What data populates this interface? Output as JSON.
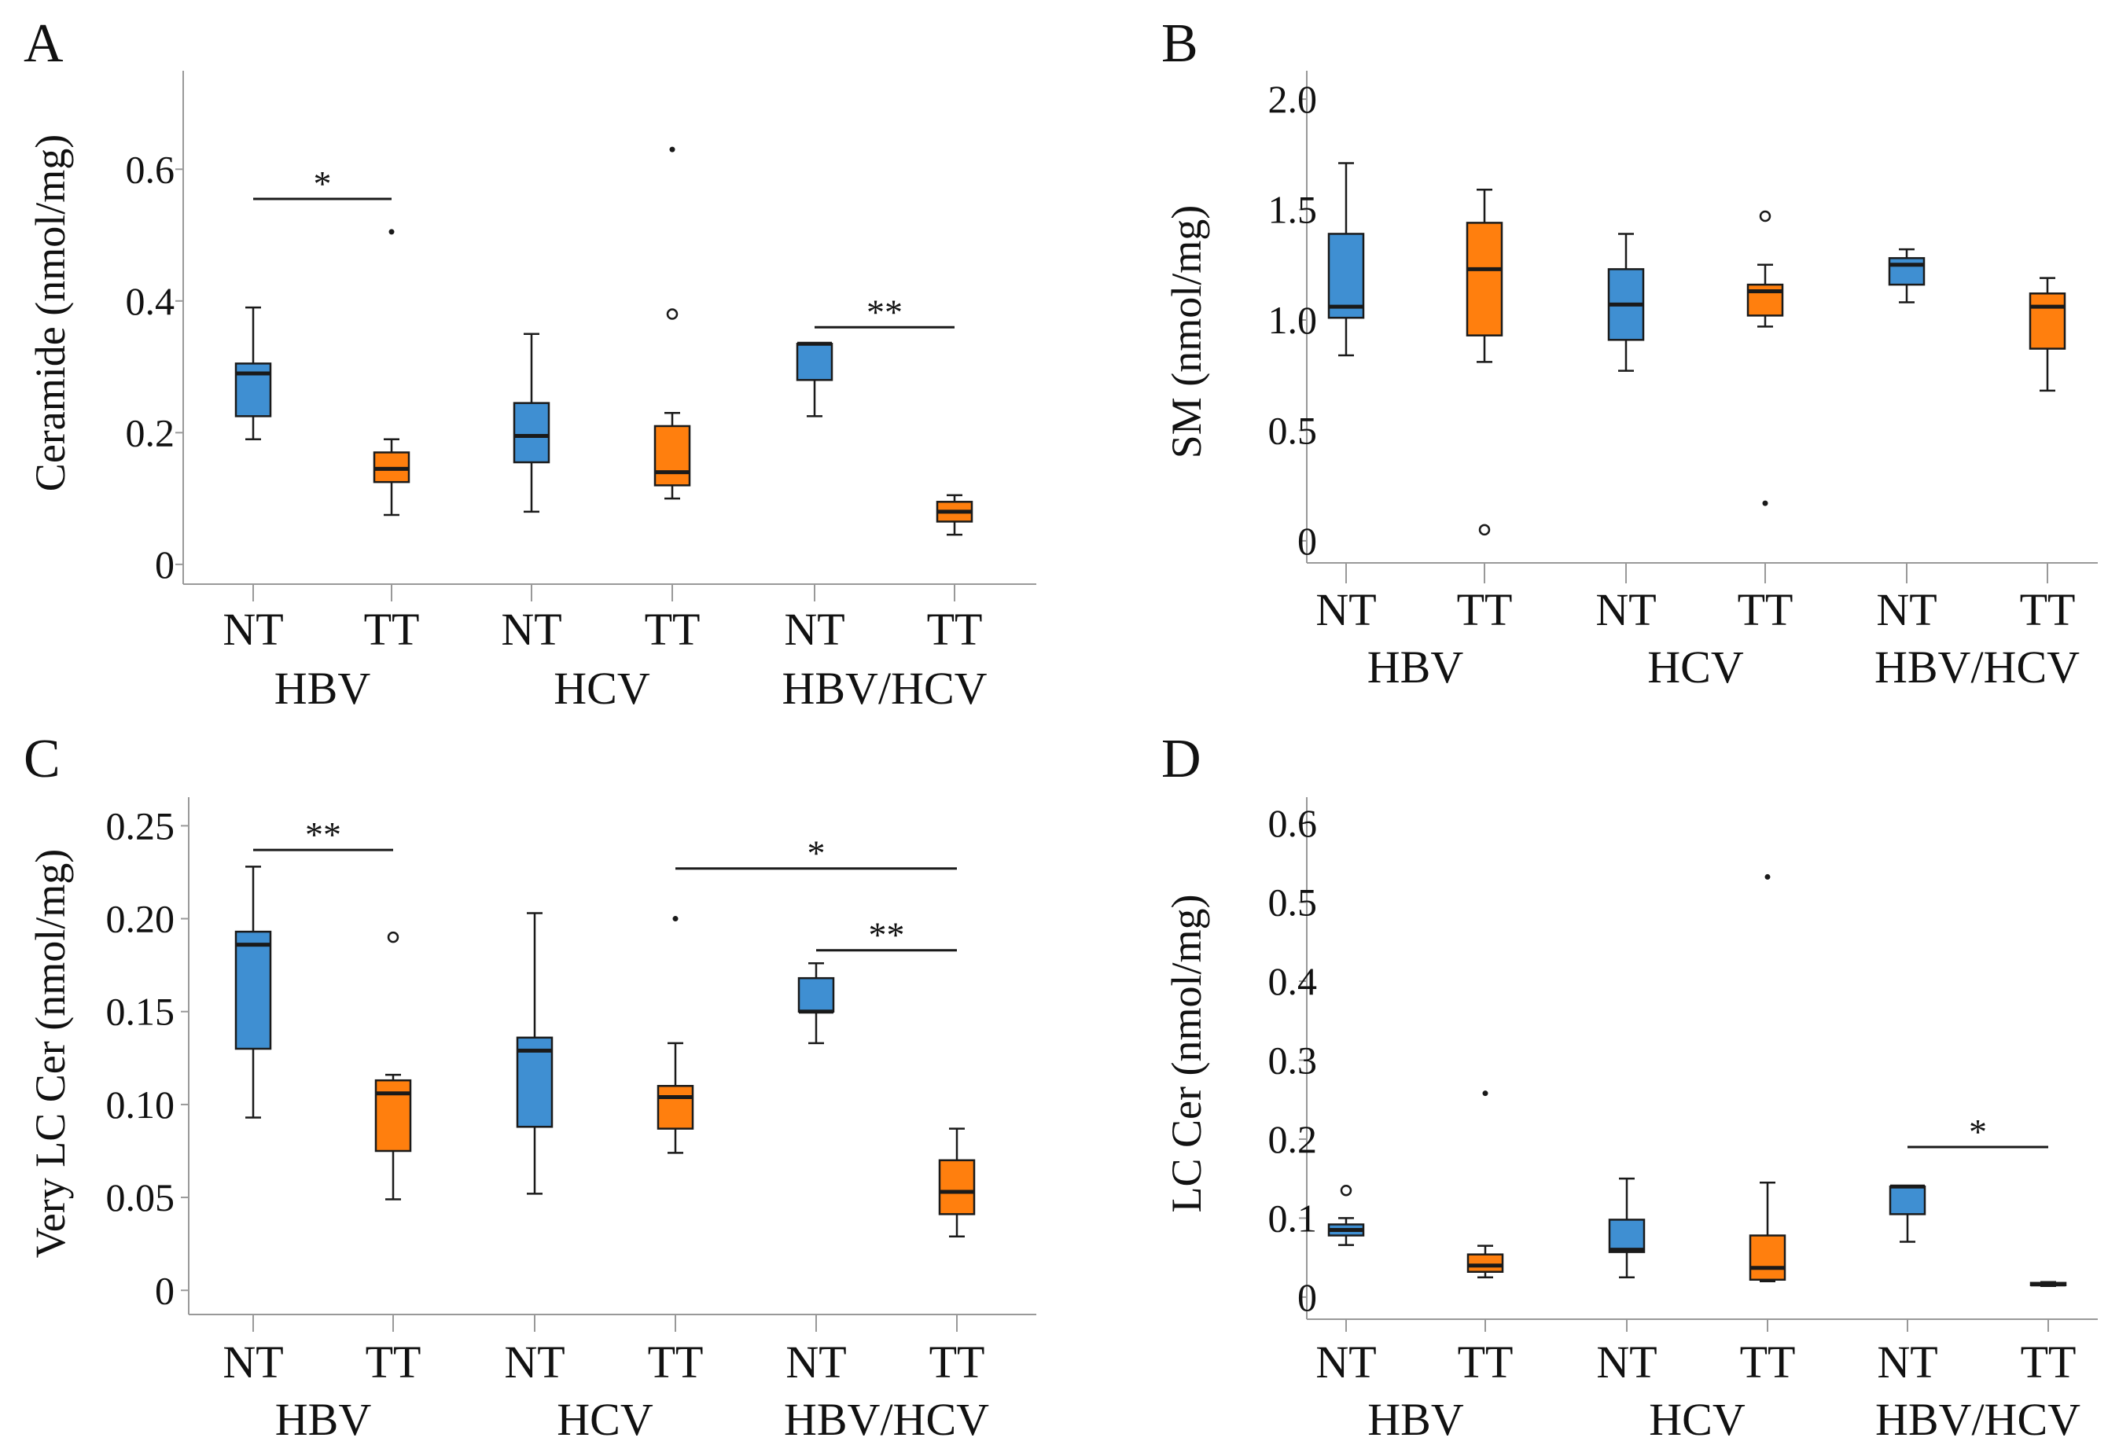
{
  "figure": {
    "layout": "2x2 grid of box plots"
  },
  "colors": {
    "NT": "#3f8fd2",
    "TT": "#ff7f0e",
    "line": "#1a1a1a",
    "axis": "#999999"
  },
  "chart_data": [
    {
      "panel": "A",
      "type": "box",
      "ylabel": "Ceramide (nmol/mg)",
      "yticks": [
        0,
        0.2,
        0.4,
        0.6
      ],
      "ytick_labels": [
        "0",
        "0.2",
        "0.4",
        "0.6"
      ],
      "ylim": [
        -0.03,
        0.74
      ],
      "xtick_labels": [
        "NT",
        "TT",
        "NT",
        "TT",
        "NT",
        "TT"
      ],
      "groups": [
        "HBV",
        "HCV",
        "HBV/HCV"
      ],
      "boxes": [
        {
          "label": "NT",
          "group": "HBV",
          "min": 0.19,
          "q1": 0.225,
          "median": 0.29,
          "q3": 0.305,
          "max": 0.39,
          "outliers": []
        },
        {
          "label": "TT",
          "group": "HBV",
          "min": 0.075,
          "q1": 0.125,
          "median": 0.145,
          "q3": 0.17,
          "max": 0.19,
          "outliers": [
            {
              "value": 0.505,
              "marker": "star"
            }
          ]
        },
        {
          "label": "NT",
          "group": "HCV",
          "min": 0.08,
          "q1": 0.155,
          "median": 0.195,
          "q3": 0.245,
          "max": 0.35,
          "outliers": []
        },
        {
          "label": "TT",
          "group": "HCV",
          "min": 0.1,
          "q1": 0.12,
          "median": 0.14,
          "q3": 0.21,
          "max": 0.23,
          "outliers": [
            {
              "value": 0.38,
              "marker": "circle"
            },
            {
              "value": 0.63,
              "marker": "star"
            }
          ]
        },
        {
          "label": "NT",
          "group": "HBV/HCV",
          "min": 0.225,
          "q1": 0.28,
          "median": 0.335,
          "q3": 0.335,
          "max": 0.335,
          "outliers": []
        },
        {
          "label": "TT",
          "group": "HBV/HCV",
          "min": 0.045,
          "q1": 0.065,
          "median": 0.08,
          "q3": 0.095,
          "max": 0.105,
          "outliers": []
        }
      ],
      "significance": [
        {
          "from": 0,
          "to": 1,
          "y": 0.555,
          "label": "*"
        },
        {
          "from": 4,
          "to": 5,
          "y": 0.36,
          "label": "**"
        }
      ]
    },
    {
      "panel": "B",
      "type": "box",
      "ylabel": "SM (nmol/mg)",
      "yticks": [
        0,
        0.5,
        1.0,
        1.5,
        2.0
      ],
      "ytick_labels": [
        "0",
        "0.5",
        "1.0",
        "1.5",
        "2.0"
      ],
      "ylim": [
        -0.1,
        2.1
      ],
      "xtick_labels": [
        "NT",
        "TT",
        "NT",
        "TT",
        "NT",
        "TT"
      ],
      "groups": [
        "HBV",
        "HCV",
        "HBV/HCV"
      ],
      "boxes": [
        {
          "label": "NT",
          "group": "HBV",
          "min": 0.84,
          "q1": 1.01,
          "median": 1.06,
          "q3": 1.39,
          "max": 1.71,
          "outliers": []
        },
        {
          "label": "TT",
          "group": "HBV",
          "min": 0.81,
          "q1": 0.93,
          "median": 1.23,
          "q3": 1.44,
          "max": 1.59,
          "outliers": [
            {
              "value": 0.05,
              "marker": "circle"
            }
          ]
        },
        {
          "label": "NT",
          "group": "HCV",
          "min": 0.77,
          "q1": 0.91,
          "median": 1.07,
          "q3": 1.23,
          "max": 1.39,
          "outliers": []
        },
        {
          "label": "TT",
          "group": "HCV",
          "min": 0.97,
          "q1": 1.02,
          "median": 1.13,
          "q3": 1.16,
          "max": 1.25,
          "outliers": [
            {
              "value": 1.47,
              "marker": "circle"
            },
            {
              "value": 0.17,
              "marker": "star"
            }
          ]
        },
        {
          "label": "NT",
          "group": "HBV/HCV",
          "min": 1.08,
          "q1": 1.16,
          "median": 1.25,
          "q3": 1.28,
          "max": 1.32,
          "outliers": []
        },
        {
          "label": "TT",
          "group": "HBV/HCV",
          "min": 0.68,
          "q1": 0.87,
          "median": 1.06,
          "q3": 1.12,
          "max": 1.19,
          "outliers": []
        }
      ],
      "significance": []
    },
    {
      "panel": "C",
      "type": "box",
      "ylabel": "Very LC Cer (nmol/mg)",
      "yticks": [
        0,
        0.05,
        0.1,
        0.15,
        0.2,
        0.25
      ],
      "ytick_labels": [
        "0",
        "0.05",
        "0.10",
        "0.15",
        "0.20",
        "0.25"
      ],
      "ylim": [
        -0.013,
        0.262
      ],
      "xtick_labels": [
        "NT",
        "TT",
        "NT",
        "TT",
        "NT",
        "TT"
      ],
      "groups": [
        "HBV",
        "HCV",
        "HBV/HCV"
      ],
      "boxes": [
        {
          "label": "NT",
          "group": "HBV",
          "min": 0.093,
          "q1": 0.13,
          "median": 0.186,
          "q3": 0.193,
          "max": 0.228,
          "outliers": []
        },
        {
          "label": "TT",
          "group": "HBV",
          "min": 0.049,
          "q1": 0.075,
          "median": 0.106,
          "q3": 0.113,
          "max": 0.116,
          "outliers": [
            {
              "value": 0.19,
              "marker": "circle"
            }
          ]
        },
        {
          "label": "NT",
          "group": "HCV",
          "min": 0.052,
          "q1": 0.088,
          "median": 0.129,
          "q3": 0.136,
          "max": 0.203,
          "outliers": []
        },
        {
          "label": "TT",
          "group": "HCV",
          "min": 0.074,
          "q1": 0.087,
          "median": 0.104,
          "q3": 0.11,
          "max": 0.133,
          "outliers": [
            {
              "value": 0.2,
              "marker": "star"
            }
          ]
        },
        {
          "label": "NT",
          "group": "HBV/HCV",
          "min": 0.133,
          "q1": 0.15,
          "median": 0.15,
          "q3": 0.168,
          "max": 0.176,
          "outliers": []
        },
        {
          "label": "TT",
          "group": "HBV/HCV",
          "min": 0.029,
          "q1": 0.041,
          "median": 0.053,
          "q3": 0.07,
          "max": 0.087,
          "outliers": []
        }
      ],
      "significance": [
        {
          "from": 0,
          "to": 1,
          "y": 0.237,
          "label": "**"
        },
        {
          "from": 3,
          "to": 5,
          "y": 0.227,
          "label": "*"
        },
        {
          "from": 4,
          "to": 5,
          "y": 0.183,
          "label": "**"
        }
      ]
    },
    {
      "panel": "D",
      "type": "box",
      "ylabel": "LC Cer (nmol/mg)",
      "yticks": [
        0,
        0.1,
        0.2,
        0.3,
        0.4,
        0.5,
        0.6
      ],
      "ytick_labels": [
        "0",
        "0.1",
        "0.2",
        "0.3",
        "0.4",
        "0.5",
        "0.6"
      ],
      "ylim": [
        -0.028,
        0.625
      ],
      "xtick_labels": [
        "NT",
        "TT",
        "NT",
        "TT",
        "NT",
        "TT"
      ],
      "groups": [
        "HBV",
        "HCV",
        "HBV/HCV"
      ],
      "boxes": [
        {
          "label": "NT",
          "group": "HBV",
          "min": 0.066,
          "q1": 0.078,
          "median": 0.085,
          "q3": 0.092,
          "max": 0.1,
          "outliers": [
            {
              "value": 0.135,
              "marker": "circle"
            }
          ]
        },
        {
          "label": "TT",
          "group": "HBV",
          "min": 0.025,
          "q1": 0.032,
          "median": 0.04,
          "q3": 0.054,
          "max": 0.065,
          "outliers": [
            {
              "value": 0.258,
              "marker": "star"
            }
          ]
        },
        {
          "label": "NT",
          "group": "HCV",
          "min": 0.025,
          "q1": 0.057,
          "median": 0.06,
          "q3": 0.098,
          "max": 0.15,
          "outliers": []
        },
        {
          "label": "TT",
          "group": "HCV",
          "min": 0.02,
          "q1": 0.022,
          "median": 0.037,
          "q3": 0.078,
          "max": 0.145,
          "outliers": [
            {
              "value": 0.532,
              "marker": "star"
            }
          ]
        },
        {
          "label": "NT",
          "group": "HBV/HCV",
          "min": 0.07,
          "q1": 0.105,
          "median": 0.14,
          "q3": 0.14,
          "max": 0.14,
          "outliers": []
        },
        {
          "label": "TT",
          "group": "HBV/HCV",
          "min": 0.014,
          "q1": 0.015,
          "median": 0.016,
          "q3": 0.018,
          "max": 0.019,
          "outliers": []
        }
      ],
      "significance": [
        {
          "from": 4,
          "to": 5,
          "y": 0.19,
          "label": "*"
        }
      ]
    }
  ]
}
